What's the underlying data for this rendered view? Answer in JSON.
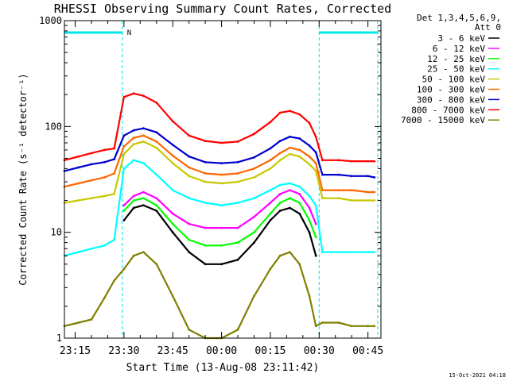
{
  "chart_data": {
    "type": "line",
    "title": "RHESSI Observing Summary Count Rates, Corrected",
    "xlabel": "Start Time (13-Aug-08 23:11:42)",
    "ylabel": "Corrected Count Rate (s⁻¹ detector⁻¹)",
    "y_scale": "log",
    "ylim": [
      1,
      1000
    ],
    "y_ticks": [
      {
        "value": 1,
        "label": "1"
      },
      {
        "value": 10,
        "label": "10"
      },
      {
        "value": 100,
        "label": "100"
      },
      {
        "value": 1000,
        "label": "1000"
      }
    ],
    "xlim": [
      "23:11:42",
      "00:49:00"
    ],
    "x_ticks": [
      {
        "value": "23:15",
        "label": "23:15"
      },
      {
        "value": "23:30",
        "label": "23:30"
      },
      {
        "value": "23:45",
        "label": "23:45"
      },
      {
        "value": "00:00",
        "label": "00:00"
      },
      {
        "value": "00:15",
        "label": "00:15"
      },
      {
        "value": "00:30",
        "label": "00:30"
      },
      {
        "value": "00:45",
        "label": "00:45"
      }
    ],
    "legend_header": [
      "Det 1,3,4,5,6,9,",
      "Att 0"
    ],
    "legend_position": "right",
    "night_marker": "N",
    "night_intervals": [
      [
        "23:11:42",
        "23:29:30"
      ],
      [
        "00:30:00",
        "00:48:00"
      ]
    ],
    "x": [
      "23:11:42",
      "23:16:00",
      "23:20:00",
      "23:24:00",
      "23:27:00",
      "23:30:00",
      "23:33:00",
      "23:36:00",
      "23:40:00",
      "23:45:00",
      "23:50:00",
      "23:55:00",
      "00:00:00",
      "00:05:00",
      "00:10:00",
      "00:15:00",
      "00:18:00",
      "00:21:00",
      "00:24:00",
      "00:27:00",
      "00:29:00",
      "00:31:00",
      "00:36:00",
      "00:40:00",
      "00:45:00",
      "00:47:00"
    ],
    "series": [
      {
        "name": "3 - 6 keV",
        "color": "#000000",
        "values": [
          null,
          null,
          null,
          null,
          null,
          13,
          17,
          18,
          16,
          10,
          6.5,
          5,
          5,
          5.5,
          8,
          13,
          16,
          17,
          15,
          10,
          6,
          null,
          null,
          null,
          null,
          null
        ]
      },
      {
        "name": "6 - 12 keV",
        "color": "#ff00ff",
        "values": [
          null,
          null,
          null,
          null,
          null,
          18,
          22,
          24,
          21,
          15,
          12,
          11,
          11,
          11,
          14,
          19,
          23,
          25,
          23,
          17,
          12,
          null,
          null,
          null,
          null,
          null
        ]
      },
      {
        "name": "12 - 25 keV",
        "color": "#00ff00",
        "values": [
          null,
          null,
          null,
          null,
          null,
          16,
          20,
          21,
          18,
          12,
          8.5,
          7.5,
          7.5,
          8,
          10,
          15,
          19,
          21,
          19,
          13,
          9,
          null,
          null,
          null,
          null,
          null
        ]
      },
      {
        "name": "25 - 50 keV",
        "color": "#00ffff",
        "values": [
          6,
          6.5,
          7,
          7.5,
          8.5,
          40,
          48,
          45,
          35,
          25,
          21,
          19,
          18,
          19,
          21,
          25,
          28,
          29,
          27,
          22,
          18,
          6.5,
          6.5,
          6.5,
          6.5,
          6.5
        ]
      },
      {
        "name": "50 - 100 keV",
        "color": "#c8c800",
        "values": [
          19,
          20,
          21,
          22,
          23,
          55,
          68,
          72,
          63,
          45,
          34,
          30,
          29,
          30,
          33,
          40,
          48,
          55,
          52,
          44,
          38,
          21,
          21,
          20,
          20,
          20
        ]
      },
      {
        "name": "100 - 300 keV",
        "color": "#ff6600",
        "values": [
          27,
          29,
          31,
          33,
          36,
          65,
          78,
          82,
          72,
          53,
          41,
          36,
          35,
          36,
          40,
          48,
          56,
          63,
          60,
          52,
          45,
          25,
          25,
          25,
          24,
          24
        ]
      },
      {
        "name": "300 - 800 keV",
        "color": "#0000cc",
        "values": [
          38,
          41,
          44,
          46,
          49,
          82,
          92,
          96,
          88,
          67,
          52,
          46,
          45,
          46,
          51,
          62,
          73,
          80,
          77,
          66,
          57,
          35,
          35,
          34,
          34,
          33
        ]
      },
      {
        "name": "800 - 7000 keV",
        "color": "#ff0000",
        "values": [
          48,
          52,
          56,
          60,
          62,
          190,
          205,
          195,
          168,
          112,
          82,
          73,
          70,
          72,
          85,
          110,
          135,
          140,
          130,
          108,
          80,
          48,
          48,
          47,
          47,
          47
        ]
      },
      {
        "name": "7000 - 15000 keV",
        "color": "#808000",
        "values": [
          1.3,
          1.4,
          1.5,
          2.4,
          3.5,
          4.5,
          6,
          6.5,
          5,
          2.5,
          1.2,
          1,
          1,
          1.2,
          2.5,
          4.5,
          6,
          6.5,
          5,
          2.5,
          1.3,
          1.4,
          1.4,
          1.3,
          1.3,
          1.3
        ]
      }
    ],
    "footer_date": "15-Oct-2021 04:18"
  }
}
